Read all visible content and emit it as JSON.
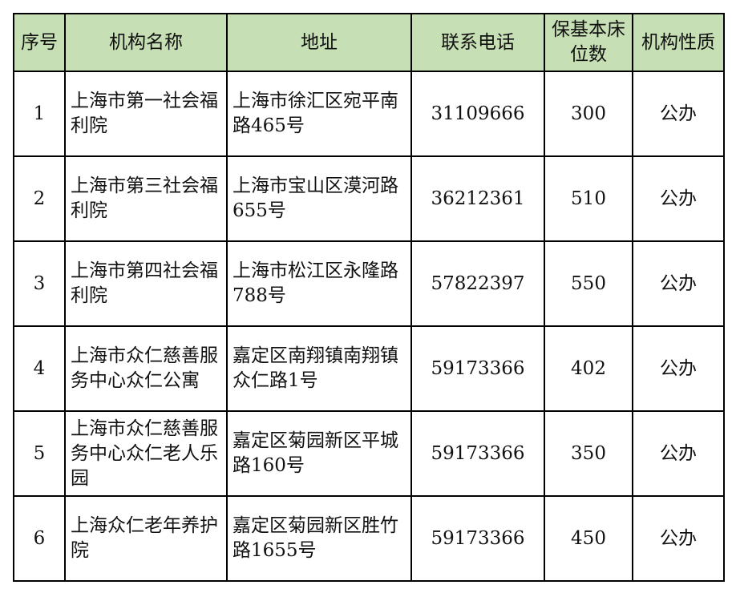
{
  "header": {
    "index": "序号",
    "name": "机构名称",
    "address": "地址",
    "phone": "联系电话",
    "beds": "保基本床位数",
    "nature": "机构性质"
  },
  "header_color": "#c6dfb4",
  "rows": [
    {
      "index": "1",
      "name": "上海市第一社会福利院",
      "address": "上海市徐汇区宛平南路465号",
      "phone": "31109666",
      "beds": "300",
      "nature": "公办"
    },
    {
      "index": "2",
      "name": "上海市第三社会福利院",
      "address": "上海市宝山区漠河路655号",
      "phone": "36212361",
      "beds": "510",
      "nature": "公办"
    },
    {
      "index": "3",
      "name": "上海市第四社会福利院",
      "address": "上海市松江区永隆路788号",
      "phone": "57822397",
      "beds": "550",
      "nature": "公办"
    },
    {
      "index": "4",
      "name": "上海市众仁慈善服务中心众仁公寓",
      "address": "嘉定区南翔镇南翔镇众仁路1号",
      "phone": "59173366",
      "beds": "402",
      "nature": "公办"
    },
    {
      "index": "5",
      "name": "上海市众仁慈善服务中心众仁老人乐园",
      "address": "嘉定区菊园新区平城路160号",
      "phone": "59173366",
      "beds": "350",
      "nature": "公办"
    },
    {
      "index": "6",
      "name": "上海众仁老年养护院",
      "address": "嘉定区菊园新区胜竹路1655号",
      "phone": "59173366",
      "beds": "450",
      "nature": "公办"
    }
  ]
}
